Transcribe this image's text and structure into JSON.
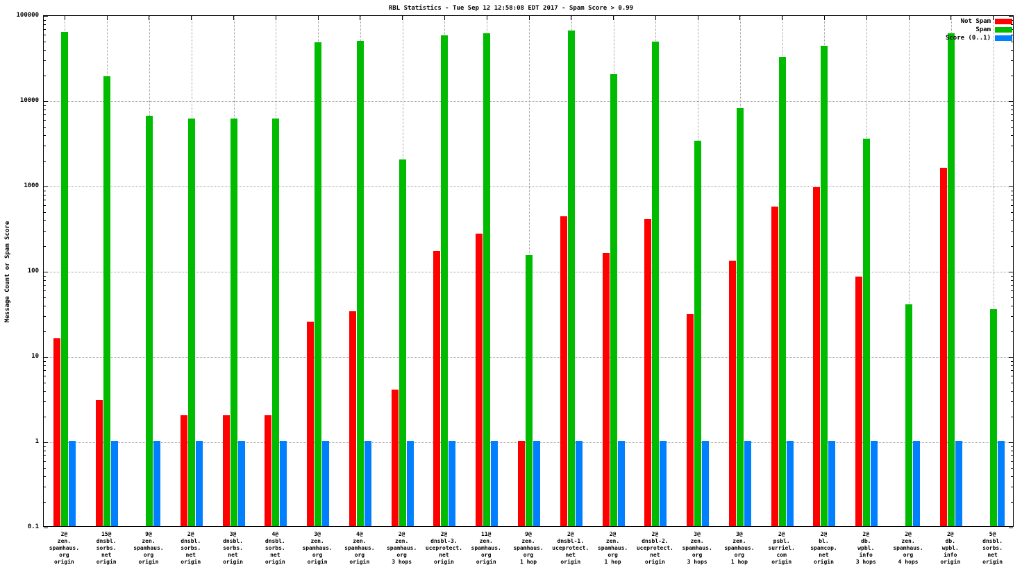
{
  "chart_data": {
    "type": "bar",
    "title": "RBL Statistics - Tue Sep 12 12:58:08 EDT 2017 - Spam Score > 0.99",
    "ylabel": "Message Count or Spam Score",
    "xlabel": "",
    "yscale": "log",
    "ylim": [
      0.1,
      100000
    ],
    "grid": true,
    "legend_position": "top-right",
    "ytick_values": [
      0.1,
      1,
      10,
      100,
      1000,
      10000,
      100000
    ],
    "ytick_labels": [
      "0.1",
      "1",
      "10",
      "100",
      "1000",
      "10000",
      "100000"
    ],
    "categories": [
      [
        "2@",
        "zen.",
        "spamhaus.",
        "org",
        "origin"
      ],
      [
        "15@",
        "dnsbl.",
        "sorbs.",
        "net",
        "origin"
      ],
      [
        "9@",
        "zen.",
        "spamhaus.",
        "org",
        "origin"
      ],
      [
        "2@",
        "dnsbl.",
        "sorbs.",
        "net",
        "origin"
      ],
      [
        "3@",
        "dnsbl.",
        "sorbs.",
        "net",
        "origin"
      ],
      [
        "4@",
        "dnsbl.",
        "sorbs.",
        "net",
        "origin"
      ],
      [
        "3@",
        "zen.",
        "spamhaus.",
        "org",
        "origin"
      ],
      [
        "4@",
        "zen.",
        "spamhaus.",
        "org",
        "origin"
      ],
      [
        "2@",
        "zen.",
        "spamhaus.",
        "org",
        "3 hops"
      ],
      [
        "2@",
        "dnsbl-3.",
        "uceprotect.",
        "net",
        "origin"
      ],
      [
        "11@",
        "zen.",
        "spamhaus.",
        "org",
        "origin"
      ],
      [
        "9@",
        "zen.",
        "spamhaus.",
        "org",
        "1 hop"
      ],
      [
        "2@",
        "dnsbl-1.",
        "uceprotect.",
        "net",
        "origin"
      ],
      [
        "2@",
        "zen.",
        "spamhaus.",
        "org",
        "1 hop"
      ],
      [
        "2@",
        "dnsbl-2.",
        "uceprotect.",
        "net",
        "origin"
      ],
      [
        "3@",
        "zen.",
        "spamhaus.",
        "org",
        "3 hops"
      ],
      [
        "3@",
        "zen.",
        "spamhaus.",
        "org",
        "1 hop"
      ],
      [
        "2@",
        "psbl.",
        "surriel.",
        "com",
        "origin"
      ],
      [
        "2@",
        "bl.",
        "spamcop.",
        "net",
        "origin"
      ],
      [
        "2@",
        "db.",
        "wpbl.",
        "info",
        "3 hops"
      ],
      [
        "2@",
        "zen.",
        "spamhaus.",
        "org",
        "4 hops"
      ],
      [
        "2@",
        "db.",
        "wpbl.",
        "info",
        "origin"
      ],
      [
        "5@",
        "dnsbl.",
        "sorbs.",
        "net",
        "origin"
      ]
    ],
    "series": [
      {
        "name": "Not Spam",
        "color": "#ff0000",
        "values": [
          16,
          3,
          null,
          2,
          2,
          2,
          25,
          33,
          4,
          170,
          270,
          1,
          430,
          160,
          400,
          31,
          130,
          560,
          950,
          85,
          null,
          1600,
          null
        ]
      },
      {
        "name": "Spam",
        "color": "#00bb00",
        "values": [
          63000,
          19000,
          6500,
          6000,
          6000,
          6000,
          47000,
          49000,
          2000,
          57000,
          60000,
          150,
          65000,
          20000,
          48000,
          3300,
          8000,
          32000,
          43000,
          3500,
          40,
          60000,
          35
        ]
      },
      {
        "name": "Score (0..1)",
        "color": "#0080ff",
        "values": [
          1,
          1,
          1,
          1,
          1,
          1,
          1,
          1,
          1,
          1,
          1,
          1,
          1,
          1,
          1,
          1,
          1,
          1,
          1,
          1,
          1,
          1,
          1
        ]
      }
    ]
  }
}
